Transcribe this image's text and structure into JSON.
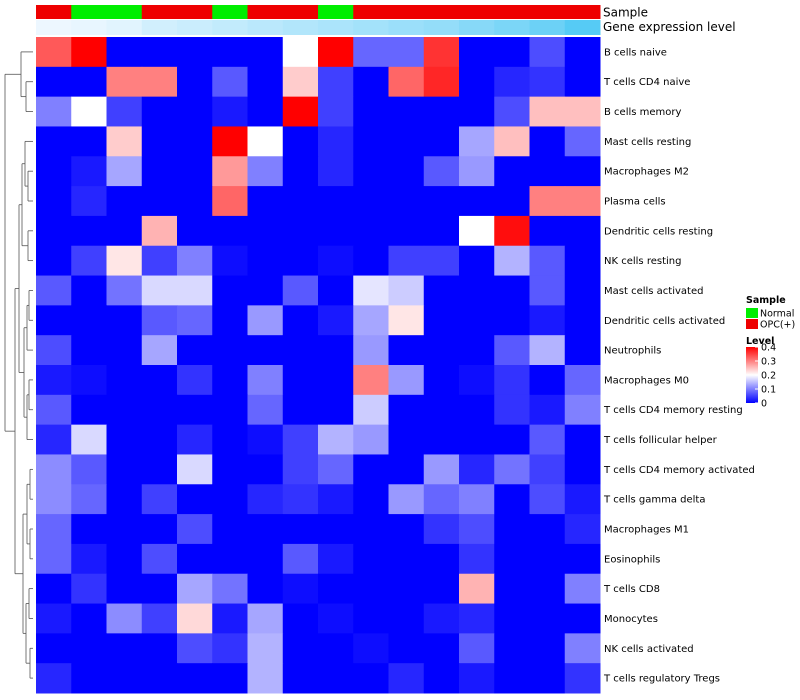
{
  "chart_data": {
    "type": "heatmap",
    "title": "",
    "annotation_labels": [
      "Sample",
      "Gene expression level"
    ],
    "columns": 16,
    "sample_annotation": [
      "OPC(+)",
      "Normal",
      "Normal",
      "OPC(+)",
      "OPC(+)",
      "Normal",
      "OPC(+)",
      "OPC(+)",
      "Normal",
      "OPC(+)",
      "OPC(+)",
      "OPC(+)",
      "OPC(+)",
      "OPC(+)",
      "OPC(+)",
      "OPC(+)"
    ],
    "expression_annotation": [
      0.02,
      0.05,
      0.1,
      0.2,
      0.25,
      0.3,
      0.35,
      0.4,
      0.45,
      0.5,
      0.55,
      0.6,
      0.68,
      0.76,
      0.86,
      1.0
    ],
    "rows": [
      "B cells naive",
      "T cells CD4 naive",
      "B cells memory",
      "Mast cells resting",
      "Macrophages M2",
      "Plasma cells",
      "Dendritic cells resting",
      "NK cells resting",
      "Mast cells activated",
      "Dendritic cells activated",
      "Neutrophils",
      "Macrophages M0",
      "T cells CD4 memory resting",
      "T cells follicular helper",
      "T cells CD4 memory activated",
      "T cells gamma delta",
      "Macrophages M1",
      "Eosinophils",
      "T cells CD8",
      "Monocytes",
      "NK cells activated",
      "T cells regulatory  Tregs"
    ],
    "values": [
      [
        0.33,
        0.4,
        0,
        0,
        0,
        0,
        0,
        0.2,
        0.4,
        0.08,
        0.08,
        0.36,
        0,
        0,
        0.06,
        0
      ],
      [
        0,
        0,
        0.3,
        0.3,
        0,
        0.07,
        0,
        0.24,
        0.05,
        0,
        0.32,
        0.37,
        0,
        0.03,
        0.04,
        0
      ],
      [
        0.1,
        0.2,
        0.05,
        0,
        0,
        0.02,
        0,
        0.4,
        0.05,
        0,
        0,
        0,
        0,
        0.06,
        0.25,
        0.25
      ],
      [
        0,
        0,
        0.24,
        0,
        0,
        0.4,
        0.2,
        0,
        0.03,
        0,
        0,
        0,
        0.13,
        0.25,
        0,
        0.08
      ],
      [
        0,
        0.02,
        0.13,
        0,
        0,
        0.28,
        0.1,
        0,
        0.03,
        0,
        0,
        0.07,
        0.12,
        0,
        0,
        0
      ],
      [
        0,
        0.03,
        0,
        0,
        0,
        0.32,
        0,
        0,
        0,
        0,
        0,
        0,
        0,
        0,
        0.3,
        0.3
      ],
      [
        0,
        0,
        0,
        0.26,
        0,
        0,
        0,
        0,
        0,
        0,
        0,
        0,
        0.2,
        0.39,
        0,
        0
      ],
      [
        0,
        0.05,
        0.22,
        0.05,
        0.1,
        0.01,
        0,
        0,
        0.01,
        0,
        0.05,
        0.05,
        0,
        0.14,
        0.07,
        0
      ],
      [
        0.07,
        0,
        0.09,
        0.17,
        0.17,
        0,
        0,
        0.07,
        0,
        0.18,
        0.16,
        0,
        0,
        0,
        0.07,
        0
      ],
      [
        0,
        0,
        0,
        0.07,
        0.08,
        0,
        0.12,
        0,
        0.02,
        0.13,
        0.22,
        0,
        0,
        0,
        0.02,
        0
      ],
      [
        0.06,
        0,
        0,
        0.13,
        0,
        0,
        0,
        0,
        0,
        0.12,
        0,
        0,
        0,
        0.07,
        0.14,
        0
      ],
      [
        0.02,
        0.01,
        0,
        0,
        0.04,
        0,
        0.1,
        0,
        0,
        0.3,
        0.12,
        0,
        0.01,
        0.04,
        0,
        0.08
      ],
      [
        0.07,
        0,
        0,
        0,
        0,
        0,
        0.08,
        0,
        0,
        0.16,
        0,
        0,
        0,
        0.04,
        0.02,
        0.1
      ],
      [
        0.03,
        0.17,
        0,
        0,
        0.03,
        0,
        0.01,
        0.05,
        0.14,
        0.12,
        0,
        0,
        0,
        0,
        0.07,
        0
      ],
      [
        0.11,
        0.07,
        0,
        0,
        0.17,
        0,
        0,
        0.05,
        0.08,
        0,
        0,
        0.12,
        0.03,
        0.09,
        0.05,
        0
      ],
      [
        0.11,
        0.08,
        0,
        0.05,
        0,
        0,
        0.03,
        0.04,
        0.02,
        0,
        0.12,
        0.08,
        0.1,
        0,
        0.06,
        0.02
      ],
      [
        0.08,
        0,
        0,
        0,
        0.06,
        0,
        0,
        0,
        0,
        0,
        0,
        0.04,
        0.06,
        0,
        0,
        0.03
      ],
      [
        0.08,
        0.02,
        0,
        0.06,
        0,
        0,
        0,
        0.07,
        0.02,
        0,
        0,
        0,
        0.04,
        0,
        0,
        0
      ],
      [
        0,
        0.04,
        0,
        0,
        0.13,
        0.09,
        0,
        0.01,
        0,
        0,
        0,
        0,
        0.26,
        0,
        0,
        0.1
      ],
      [
        0.02,
        0,
        0.11,
        0.05,
        0.23,
        0.02,
        0.13,
        0,
        0.01,
        0,
        0,
        0.02,
        0.03,
        0,
        0,
        0
      ],
      [
        0,
        0,
        0,
        0,
        0.06,
        0.04,
        0.14,
        0,
        0,
        0.01,
        0,
        0,
        0.07,
        0,
        0,
        0.1
      ],
      [
        0.03,
        0,
        0,
        0,
        0,
        0,
        0.14,
        0,
        0,
        0,
        0.03,
        0,
        0.02,
        0,
        0,
        0.04
      ]
    ],
    "dendrogram": "row clustering tree (left)",
    "legend": {
      "sample": {
        "title": "Sample",
        "entries": [
          {
            "label": "Normal",
            "color": "#00ee00"
          },
          {
            "label": "OPC(+)",
            "color": "#ee0000"
          }
        ]
      },
      "level": {
        "title": "Level",
        "ticks": [
          "0.4",
          "0.3",
          "0.2",
          "0.1",
          "0"
        ],
        "tick_values": [
          0.4,
          0.3,
          0.2,
          0.1,
          0
        ],
        "range": [
          0,
          0.4
        ]
      }
    },
    "colors": {
      "low": "#0000ff",
      "mid": "#ffffff",
      "high": "#ff0000",
      "normal": "#00ee00",
      "opc": "#ee0000",
      "expr_low": "#f0f8ff",
      "expr_high": "#56cbf5",
      "tree": "#555555"
    }
  }
}
